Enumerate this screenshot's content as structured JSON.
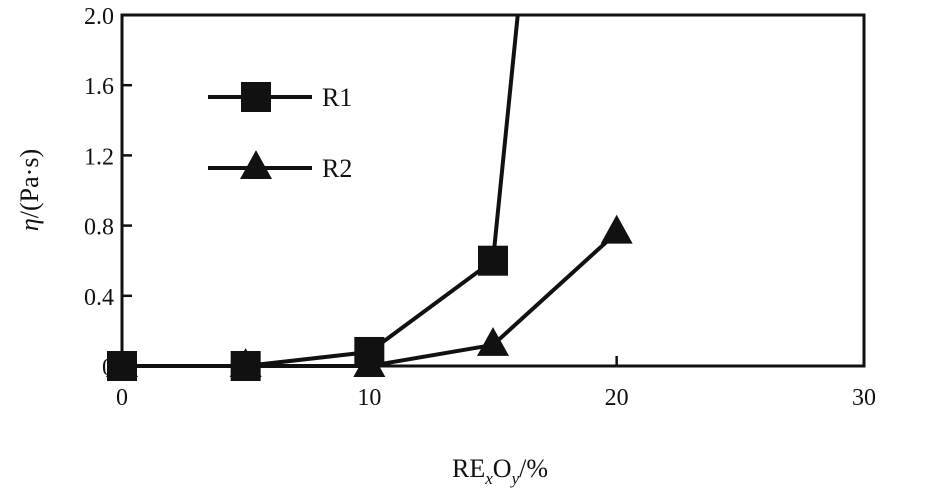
{
  "chart_data": {
    "type": "line",
    "title": "",
    "xlabel": {
      "base": "RE",
      "sub1": "x",
      "mid": "O",
      "sub2": "y",
      "tail": "/%"
    },
    "ylabel": {
      "greek": "η",
      "rest": "/(Pa·s)"
    },
    "xlim": [
      0,
      30
    ],
    "ylim": [
      0,
      2.0
    ],
    "xticks": [
      0,
      10,
      20,
      30
    ],
    "xtick_labels": [
      "0",
      "10",
      "20",
      "30"
    ],
    "yticks": [
      0,
      0.4,
      0.8,
      1.2,
      1.6,
      2.0
    ],
    "ytick_labels": [
      "0",
      "0.4",
      "0.8",
      "1.2",
      "1.6",
      "2.0"
    ],
    "grid": false,
    "legend_position": "top-left",
    "series": [
      {
        "name": "R1",
        "marker": "square",
        "x": [
          0,
          5,
          10,
          15
        ],
        "y": [
          0,
          0,
          0.08,
          0.6
        ],
        "extension": {
          "x": 16,
          "y": 2.0
        }
      },
      {
        "name": "R2",
        "marker": "triangle",
        "x": [
          0,
          5,
          10,
          15,
          20
        ],
        "y": [
          0,
          0,
          0,
          0.12,
          0.76
        ]
      }
    ]
  }
}
